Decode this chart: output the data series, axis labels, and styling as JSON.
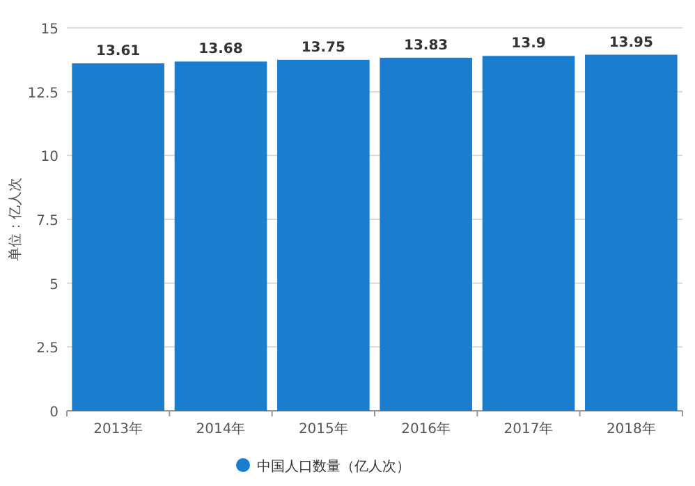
{
  "chart_data": {
    "type": "bar",
    "categories": [
      "2013年",
      "2014年",
      "2015年",
      "2016年",
      "2017年",
      "2018年"
    ],
    "series": [
      {
        "name": "中国人口数量（亿人次）",
        "color": "#1a7dcd",
        "values": [
          13.61,
          13.68,
          13.75,
          13.83,
          13.9,
          13.95
        ]
      }
    ],
    "ylabel": "单位：亿人次",
    "ylim": [
      0,
      15
    ],
    "yticks": [
      0,
      2.5,
      5,
      7.5,
      10,
      12.5,
      15
    ],
    "grid": "y",
    "legend": "bottom",
    "data_labels": true
  }
}
